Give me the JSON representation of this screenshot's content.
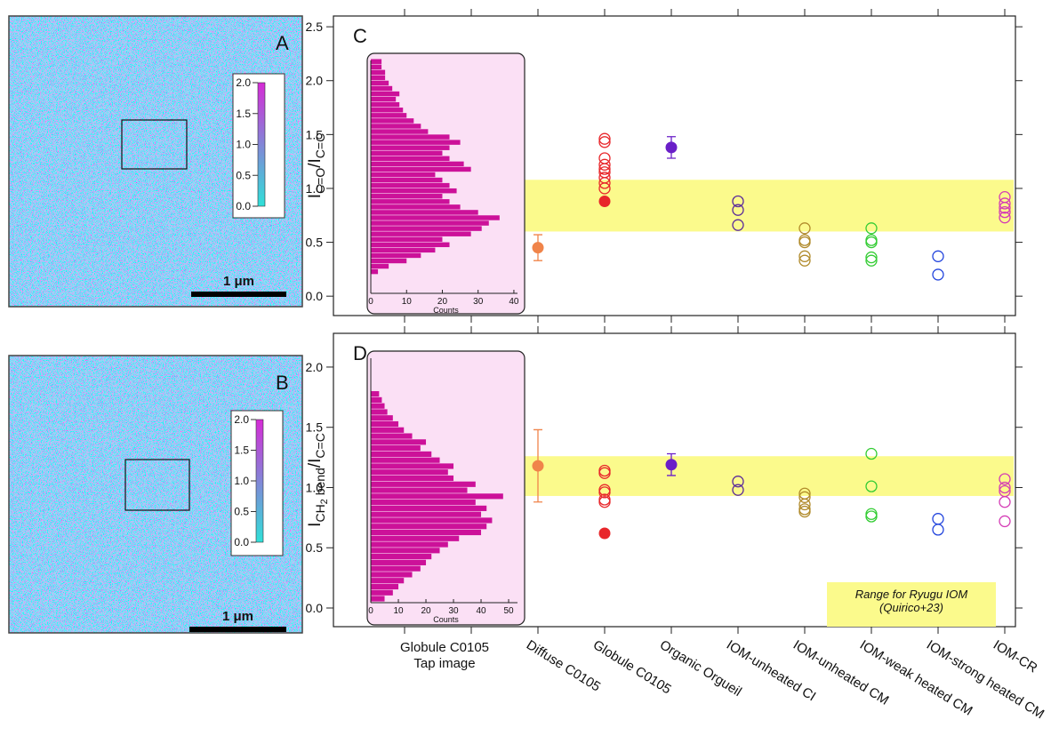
{
  "chart_data": [
    {
      "type": "image",
      "panel_label": "A",
      "scale_bar": "1 μm",
      "colorbar": {
        "clim": [
          0,
          2
        ],
        "colors": [
          "#2fe0d8",
          "#d62bd6"
        ],
        "ticks": [
          {
            "value": 0,
            "label": "0.0"
          },
          {
            "value": 0.5,
            "label": "0.5"
          },
          {
            "value": 1,
            "label": "1.0"
          },
          {
            "value": 1.5,
            "label": "1.5"
          },
          {
            "value": 2,
            "label": "2.0"
          }
        ]
      }
    },
    {
      "type": "image",
      "panel_label": "B",
      "scale_bar": "1 μm",
      "colorbar": {
        "clim": [
          0,
          2
        ],
        "colors": [
          "#2fe0d8",
          "#d62bd6"
        ],
        "ticks": [
          {
            "value": 0,
            "label": "0.0"
          },
          {
            "value": 0.5,
            "label": "0.5"
          },
          {
            "value": 1,
            "label": "1.0"
          },
          {
            "value": 1.5,
            "label": "1.5"
          },
          {
            "value": 2,
            "label": "2.0"
          }
        ]
      }
    },
    {
      "type": "dot_plot",
      "panel_label": "C",
      "ylabel": [
        {
          "text": "I",
          "shift": "base"
        },
        {
          "text": "C=O",
          "shift": "sub"
        },
        {
          "text": "/I",
          "shift": "base"
        },
        {
          "text": "C=C",
          "shift": "sub"
        }
      ],
      "ylim": [
        -0.18,
        2.6
      ],
      "yticks": [
        {
          "value": 0,
          "label": "0.0"
        },
        {
          "value": 0.5,
          "label": "0.5"
        },
        {
          "value": 1,
          "label": "1.0"
        },
        {
          "value": 1.5,
          "label": "1.5"
        },
        {
          "value": 2,
          "label": "2.0"
        },
        {
          "value": 2.5,
          "label": "2.5"
        }
      ],
      "band": [
        0.6,
        1.08
      ],
      "band_color": "#fbfa8c",
      "groups": [
        {
          "color": "#f0844a",
          "open": [],
          "filled": [
            0.45
          ],
          "errors": [
            0.12
          ]
        },
        {
          "color": "#e8262a",
          "open": [
            1.46,
            1.43,
            1.28,
            1.22,
            1.18,
            1.15,
            1.1,
            1.05,
            1.0
          ],
          "filled": [
            0.88
          ]
        },
        {
          "color": "#6a1fc8",
          "open": [],
          "filled": [
            1.38
          ],
          "errors": [
            0.1
          ]
        },
        {
          "color": "#5a2a9a",
          "open": [
            0.88,
            0.8,
            0.66
          ]
        },
        {
          "color": "#b08a2a",
          "open": [
            0.63,
            0.52,
            0.5,
            0.37,
            0.33
          ]
        },
        {
          "color": "#33cc33",
          "open": [
            0.63,
            0.52,
            0.5,
            0.36,
            0.33
          ]
        },
        {
          "color": "#2244dd",
          "open": [
            0.37,
            0.2
          ]
        },
        {
          "color": "#d43bb5",
          "open": [
            0.92,
            0.86,
            0.82,
            0.78,
            0.73
          ]
        }
      ],
      "histogram": {
        "color": "#cc1199",
        "background": "#fbe0f5",
        "xlim": [
          -1,
          43
        ],
        "xticks": [
          0,
          10,
          20,
          30,
          40
        ],
        "xlabel": "Counts",
        "bins": [
          0.2,
          0.25,
          0.3,
          0.35,
          0.4,
          0.45,
          0.5,
          0.55,
          0.6,
          0.65,
          0.7,
          0.75,
          0.8,
          0.85,
          0.9,
          0.95,
          1.0,
          1.05,
          1.1,
          1.15,
          1.2,
          1.25,
          1.3,
          1.35,
          1.4,
          1.45,
          1.5,
          1.55,
          1.6,
          1.65,
          1.7,
          1.75,
          1.8,
          1.85,
          1.9,
          1.95,
          2.0,
          2.05,
          2.1,
          2.15,
          2.2
        ],
        "counts": [
          2,
          5,
          10,
          14,
          18,
          22,
          20,
          28,
          31,
          33,
          36,
          30,
          25,
          22,
          20,
          24,
          22,
          20,
          18,
          28,
          26,
          22,
          20,
          22,
          25,
          22,
          16,
          14,
          12,
          10,
          9,
          8,
          7,
          8,
          6,
          5,
          4,
          4,
          3,
          3
        ]
      }
    },
    {
      "type": "dot_plot",
      "panel_label": "D",
      "ylabel": [
        {
          "text": "I",
          "shift": "base"
        },
        {
          "text": "CH",
          "shift": "sub"
        },
        {
          "text": "2",
          "shift": "subsub"
        },
        {
          "text": " bend",
          "shift": "sub"
        },
        {
          "text": "/I",
          "shift": "base"
        },
        {
          "text": "C=C",
          "shift": "sub"
        }
      ],
      "ylim": [
        -0.155,
        2.28
      ],
      "yticks": [
        {
          "value": 0,
          "label": "0.0"
        },
        {
          "value": 0.5,
          "label": "0.5"
        },
        {
          "value": 1,
          "label": "1.0"
        },
        {
          "value": 1.5,
          "label": "1.5"
        },
        {
          "value": 2,
          "label": "2.0"
        }
      ],
      "band": [
        0.93,
        1.26
      ],
      "band_color": "#fbfa8c",
      "annotation": [
        "Range for Ryugu IOM",
        "(Quirico+23)"
      ],
      "categories": [
        "Diffuse C0105",
        "Globule C0105",
        "Organic Orgueil",
        "IOM-unheated CI",
        "IOM-unheated CM",
        "IOM-weak heated CM",
        "IOM-strong heated CM",
        "IOM-CR"
      ],
      "inset_caption": [
        "Globule C0105",
        "Tap image"
      ],
      "groups": [
        {
          "color": "#f0844a",
          "open": [],
          "filled": [
            1.18
          ],
          "errors": [
            0.3
          ]
        },
        {
          "color": "#e8262a",
          "open": [
            1.14,
            1.12,
            0.98,
            0.96,
            0.9,
            0.88
          ],
          "filled": [
            0.62
          ]
        },
        {
          "color": "#6a1fc8",
          "open": [],
          "filled": [
            1.19
          ],
          "errors": [
            0.09
          ]
        },
        {
          "color": "#5a2a9a",
          "open": [
            1.05,
            0.98
          ]
        },
        {
          "color": "#b08a2a",
          "open": [
            0.95,
            0.92,
            0.86,
            0.82,
            0.8
          ]
        },
        {
          "color": "#33cc33",
          "open": [
            1.28,
            1.01,
            0.78,
            0.76
          ]
        },
        {
          "color": "#2244dd",
          "open": [
            0.74,
            0.65
          ]
        },
        {
          "color": "#d43bb5",
          "open": [
            1.07,
            1.0,
            0.97,
            0.88,
            0.72
          ]
        }
      ],
      "histogram": {
        "color": "#cc1199",
        "background": "#fbe0f5",
        "xlim": [
          -1.3,
          55.8
        ],
        "xticks": [
          0,
          10,
          20,
          30,
          40,
          50
        ],
        "xlabel": "Counts",
        "bins": [
          0.05,
          0.1,
          0.15,
          0.2,
          0.25,
          0.3,
          0.35,
          0.4,
          0.45,
          0.5,
          0.55,
          0.6,
          0.65,
          0.7,
          0.75,
          0.8,
          0.85,
          0.9,
          0.95,
          1.0,
          1.05,
          1.1,
          1.15,
          1.2,
          1.25,
          1.3,
          1.35,
          1.4,
          1.45,
          1.5,
          1.55,
          1.6,
          1.65,
          1.7,
          1.75,
          1.8
        ],
        "counts": [
          5,
          8,
          10,
          12,
          15,
          18,
          20,
          22,
          25,
          28,
          32,
          40,
          42,
          44,
          40,
          42,
          38,
          48,
          35,
          38,
          30,
          28,
          30,
          25,
          22,
          18,
          20,
          15,
          12,
          10,
          8,
          6,
          5,
          4,
          3
        ]
      }
    }
  ]
}
